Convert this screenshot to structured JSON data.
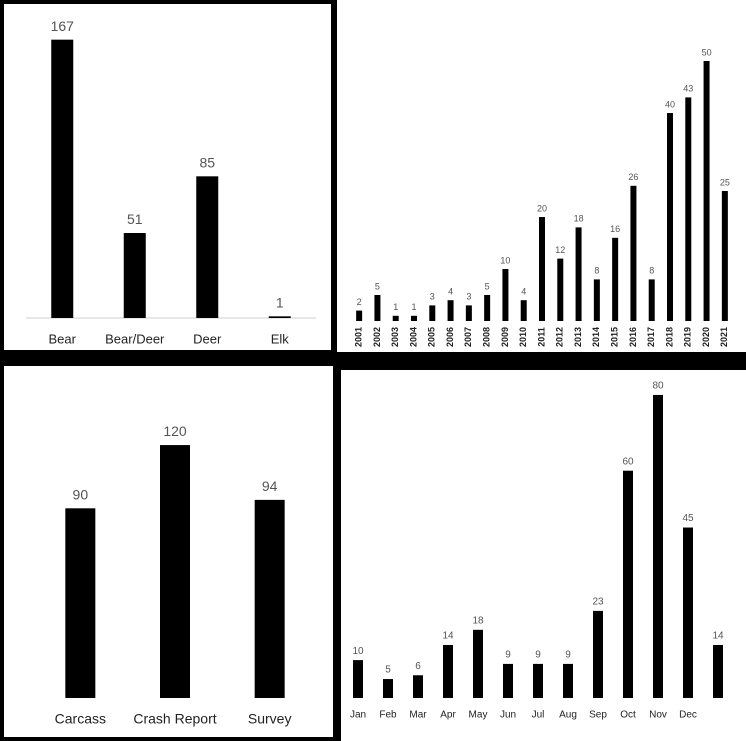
{
  "chart_data": [
    {
      "type": "bar",
      "categories": [
        "Bear",
        "Bear/Deer",
        "Deer",
        "Elk"
      ],
      "values": [
        167,
        51,
        85,
        1
      ],
      "color": "#000000",
      "ylim": [
        0,
        180
      ]
    },
    {
      "type": "bar",
      "categories": [
        "2001",
        "2002",
        "2003",
        "2004",
        "2005",
        "2006",
        "2007",
        "2008",
        "2009",
        "2010",
        "2011",
        "2012",
        "2013",
        "2014",
        "2015",
        "2016",
        "2017",
        "2018",
        "2019",
        "2020",
        "2021"
      ],
      "values": [
        2,
        5,
        1,
        1,
        3,
        4,
        3,
        5,
        10,
        4,
        20,
        12,
        18,
        8,
        16,
        26,
        8,
        40,
        43,
        50,
        25
      ],
      "color": "#000000",
      "ylim": [
        0,
        55
      ]
    },
    {
      "type": "bar",
      "categories": [
        "Carcass",
        "Crash Report",
        "Survey"
      ],
      "values": [
        90,
        120,
        94
      ],
      "color": "#000000",
      "ylim": [
        0,
        130
      ]
    },
    {
      "type": "bar",
      "categories": [
        "Jan",
        "Feb",
        "Mar",
        "Apr",
        "May",
        "Jun",
        "Jul",
        "Aug",
        "Sep",
        "Oct",
        "Nov",
        "Dec",
        null
      ],
      "values": [
        10,
        5,
        6,
        14,
        18,
        9,
        9,
        9,
        23,
        60,
        80,
        45,
        14
      ],
      "color": "#000000",
      "ylim": [
        0,
        85
      ]
    }
  ]
}
